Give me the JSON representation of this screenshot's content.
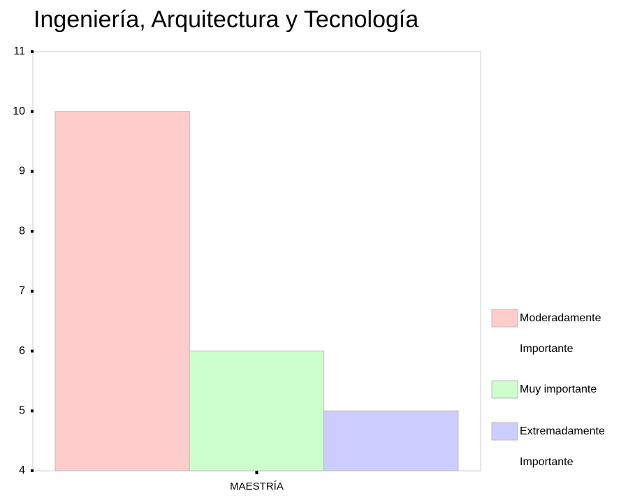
{
  "chart_data": {
    "type": "bar",
    "title": "Ingeniería, Arquitectura y Tecnología",
    "categories": [
      "MAESTRÍA"
    ],
    "series": [
      {
        "name": "Moderadamente Importante",
        "color": "#ffcccc",
        "values": [
          10
        ]
      },
      {
        "name": "Muy importante",
        "color": "#ccffcc",
        "values": [
          6
        ]
      },
      {
        "name": "Extremadamente Importante",
        "color": "#ccccff",
        "values": [
          5
        ]
      }
    ],
    "ylim": [
      4,
      11
    ],
    "yticks": [
      4,
      5,
      6,
      7,
      8,
      9,
      10,
      11
    ]
  }
}
